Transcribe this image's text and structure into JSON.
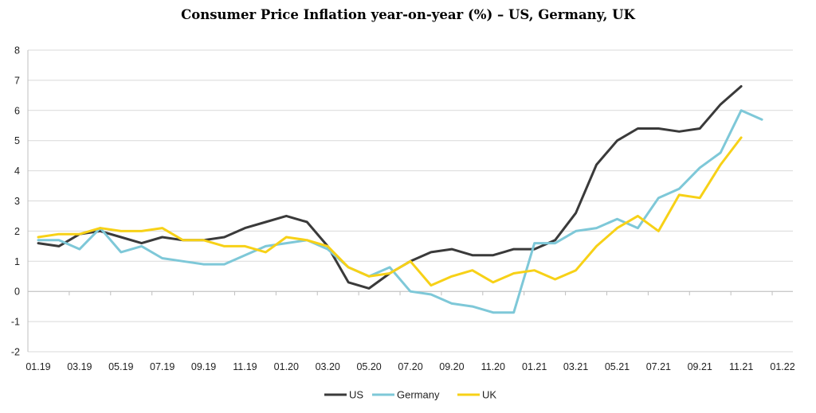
{
  "chart_data": {
    "type": "line",
    "title": "Consumer Price Inflation year-on-year (%) – US, Germany, UK",
    "xlabel": "",
    "ylabel": "",
    "ylim": [
      -2,
      8
    ],
    "yticks": [
      -2,
      -1,
      0,
      1,
      2,
      3,
      4,
      5,
      6,
      7,
      8
    ],
    "x": [
      "01.19",
      "02.19",
      "03.19",
      "04.19",
      "05.19",
      "06.19",
      "07.19",
      "08.19",
      "09.19",
      "10.19",
      "11.19",
      "12.19",
      "01.20",
      "02.20",
      "03.20",
      "04.20",
      "05.20",
      "06.20",
      "07.20",
      "08.20",
      "09.20",
      "10.20",
      "11.20",
      "12.20",
      "01.21",
      "02.21",
      "03.21",
      "04.21",
      "05.21",
      "06.21",
      "07.21",
      "08.21",
      "09.21",
      "10.21",
      "11.21",
      "12.21",
      "01.22"
    ],
    "xtick_labels": [
      "01.19",
      "03.19",
      "05.19",
      "07.19",
      "09.19",
      "11.19",
      "01.20",
      "03.20",
      "05.20",
      "07.20",
      "09.20",
      "11.20",
      "01.21",
      "03.21",
      "05.21",
      "07.21",
      "09.21",
      "11.21",
      "01.22"
    ],
    "grid": "horizontal",
    "legend": "bottom-center",
    "series": [
      {
        "name": "US",
        "color": "#3a3a3a",
        "values": [
          1.6,
          1.5,
          1.9,
          2.0,
          1.8,
          1.6,
          1.8,
          1.7,
          1.7,
          1.8,
          2.1,
          2.3,
          2.5,
          2.3,
          1.5,
          0.3,
          0.1,
          0.6,
          1.0,
          1.3,
          1.4,
          1.2,
          1.2,
          1.4,
          1.4,
          1.7,
          2.6,
          4.2,
          5.0,
          5.4,
          5.4,
          5.3,
          5.4,
          6.2,
          6.8,
          null,
          null
        ]
      },
      {
        "name": "Germany",
        "color": "#7ec8d8",
        "values": [
          1.7,
          1.7,
          1.4,
          2.1,
          1.3,
          1.5,
          1.1,
          1.0,
          0.9,
          0.9,
          1.2,
          1.5,
          1.6,
          1.7,
          1.4,
          0.8,
          0.5,
          0.8,
          0.0,
          -0.1,
          -0.4,
          -0.5,
          -0.7,
          -0.7,
          1.6,
          1.6,
          2.0,
          2.1,
          2.4,
          2.1,
          3.1,
          3.4,
          4.1,
          4.6,
          6.0,
          5.7,
          null
        ]
      },
      {
        "name": "UK",
        "color": "#f7d117",
        "values": [
          1.8,
          1.9,
          1.9,
          2.1,
          2.0,
          2.0,
          2.1,
          1.7,
          1.7,
          1.5,
          1.5,
          1.3,
          1.8,
          1.7,
          1.5,
          0.8,
          0.5,
          0.6,
          1.0,
          0.2,
          0.5,
          0.7,
          0.3,
          0.6,
          0.7,
          0.4,
          0.7,
          1.5,
          2.1,
          2.5,
          2.0,
          3.2,
          3.1,
          4.2,
          5.1,
          null,
          null
        ]
      }
    ]
  }
}
